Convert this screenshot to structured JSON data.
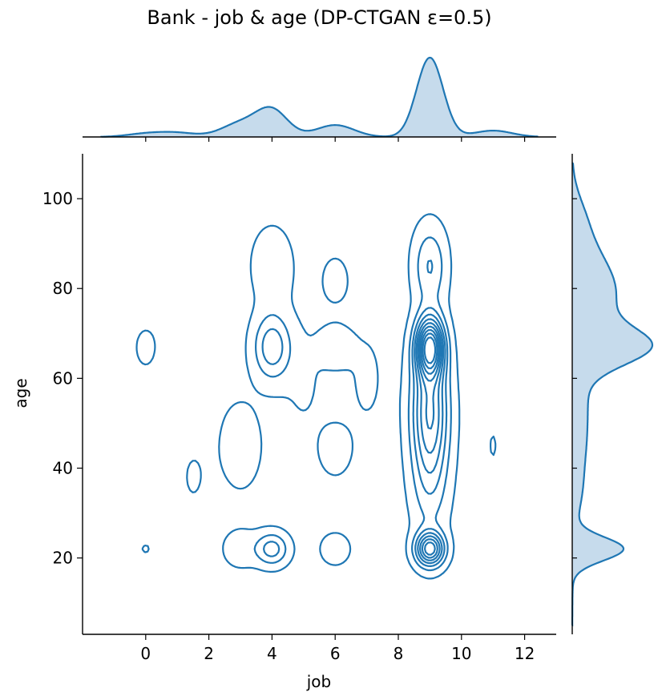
{
  "chart_data": {
    "type": "kde-joint",
    "title": "Bank - job & age (DP-CTGAN ε=0.5)",
    "xlabel": "job",
    "ylabel": "age",
    "xlim": [
      -2,
      13
    ],
    "ylim": [
      3,
      110
    ],
    "xticks": [
      0,
      2,
      4,
      6,
      8,
      10,
      12
    ],
    "yticks": [
      20,
      40,
      60,
      80,
      100
    ],
    "grid": false,
    "series_color": "#1f77b4",
    "marginal_fill": "#c6dbec",
    "job_density_peaks": [
      {
        "x": 0,
        "height": 0.04
      },
      {
        "x": 1,
        "height": 0.05
      },
      {
        "x": 3,
        "height": 0.17
      },
      {
        "x": 4,
        "height": 0.33
      },
      {
        "x": 6,
        "height": 0.15
      },
      {
        "x": 9,
        "height": 1.0
      },
      {
        "x": 11,
        "height": 0.08
      }
    ],
    "age_density_peaks": [
      {
        "y": 22,
        "height": 0.7
      },
      {
        "y": 35,
        "height": 0.08
      },
      {
        "y": 46,
        "height": 0.1
      },
      {
        "y": 56,
        "height": 0.13
      },
      {
        "y": 67,
        "height": 1.0
      },
      {
        "y": 77,
        "height": 0.45
      },
      {
        "y": 85,
        "height": 0.32
      },
      {
        "y": 95,
        "height": 0.17
      }
    ],
    "contour_levels": 10
  }
}
